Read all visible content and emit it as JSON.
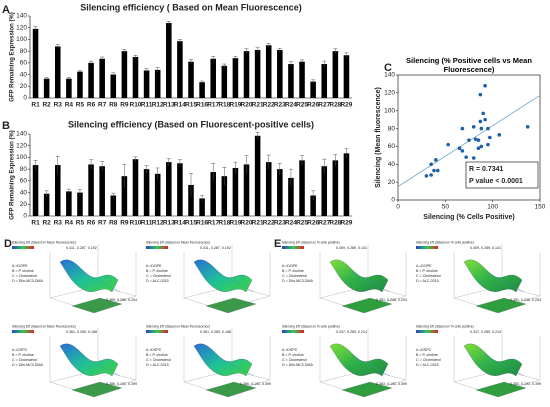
{
  "chart_data": [
    {
      "type": "bar",
      "title": "Silencing efficiency ( Based on Mean Fluorescence)",
      "y_label": "GFP Remaining Expression (%)",
      "color": "#000000",
      "categories": [
        "R1",
        "R2",
        "R3",
        "R4",
        "R5",
        "R6",
        "R7",
        "R8",
        "R9",
        "R10",
        "R11",
        "R12",
        "R13",
        "R14",
        "R15",
        "R16",
        "R17",
        "R18",
        "R19",
        "R20",
        "R21",
        "R22",
        "R23",
        "R24",
        "R25",
        "R26",
        "R27",
        "R28",
        "R29"
      ],
      "values": [
        118,
        33,
        88,
        33,
        45,
        60,
        67,
        40,
        80,
        70,
        47,
        48,
        128,
        97,
        62,
        27,
        67,
        55,
        68,
        80,
        82,
        90,
        82,
        58,
        62,
        28,
        58,
        80,
        73
      ],
      "errors": [
        4,
        2,
        3,
        2,
        2,
        3,
        3,
        3,
        3,
        3,
        3,
        4,
        3,
        3,
        4,
        2,
        4,
        3,
        3,
        4,
        4,
        3,
        3,
        4,
        3,
        3,
        5,
        4,
        4
      ],
      "ylim": [
        0,
        140
      ],
      "yticks": [
        0,
        20,
        40,
        60,
        80,
        100,
        120,
        140
      ]
    },
    {
      "type": "bar",
      "title": "Silencing efficiency (Based on Fluorescent-positive cells)",
      "y_label": "GFP Remaining Expression (%)",
      "color": "#000000",
      "categories": [
        "R1",
        "R2",
        "R3",
        "R4",
        "R5",
        "R6",
        "R7",
        "R8",
        "R9",
        "R10",
        "R11",
        "R12",
        "R13",
        "R14",
        "R15",
        "R16",
        "R17",
        "R18",
        "R19",
        "R20",
        "R21",
        "R22",
        "R23",
        "R24",
        "R25",
        "R26",
        "R27",
        "R28",
        "R29"
      ],
      "values": [
        87,
        38,
        87,
        42,
        40,
        88,
        85,
        35,
        68,
        97,
        80,
        72,
        92,
        90,
        53,
        30,
        75,
        68,
        82,
        88,
        137,
        92,
        80,
        65,
        95,
        35,
        85,
        95,
        107
      ],
      "errors": [
        8,
        5,
        15,
        4,
        5,
        8,
        8,
        4,
        20,
        4,
        6,
        10,
        6,
        6,
        20,
        5,
        15,
        15,
        10,
        15,
        6,
        12,
        10,
        15,
        8,
        8,
        12,
        10,
        8
      ],
      "ylim": [
        0,
        140
      ],
      "yticks": [
        0,
        20,
        40,
        60,
        80,
        100,
        120,
        140
      ]
    },
    {
      "type": "scatter",
      "title": "Silencing (% Positive cells vs Mean Fluorescence)",
      "x_label": "Silencing (% Cells Positive)",
      "y_label": "Silencing (Mean fluorescence)",
      "color": "#1f5fa8",
      "trend_color": "#6fa8c8",
      "x": [
        87,
        38,
        87,
        42,
        40,
        88,
        85,
        35,
        68,
        97,
        80,
        72,
        92,
        90,
        53,
        30,
        75,
        68,
        82,
        88,
        137,
        92,
        80,
        65,
        95,
        35,
        85,
        95,
        107
      ],
      "y": [
        118,
        33,
        88,
        33,
        45,
        60,
        67,
        40,
        80,
        70,
        47,
        48,
        128,
        97,
        62,
        27,
        67,
        55,
        68,
        80,
        82,
        90,
        82,
        58,
        62,
        28,
        58,
        80,
        73
      ],
      "xlim": [
        0,
        150
      ],
      "xticks": [
        0,
        50,
        100,
        150
      ],
      "ylim": [
        0,
        140
      ],
      "yticks": [
        0,
        20,
        40,
        60,
        80,
        100,
        120,
        140
      ],
      "annotations": [
        "R = 0.7341",
        "P value < 0.0001"
      ]
    }
  ],
  "figure": {
    "panel_labels": [
      "A",
      "B",
      "C",
      "D",
      "E"
    ],
    "surface_plots": [
      {
        "title": "Silencing Eff. (Based on Mean Fluorescence)",
        "legend": [
          "A =DOPE",
          "B = P. choline",
          "C = Cholesterol",
          "D = Dlin-MC3-DMA"
        ],
        "points": [
          "0.411, 0.287, 0.192",
          "0.369, 0.286, 0.204"
        ]
      },
      {
        "title": "Silencing Eff. (Based on Mean Fluorescence)",
        "legend": [
          "A =DOPE",
          "B = P. choline",
          "C = Cholesterol",
          "D = ALC-0315"
        ],
        "points": [
          "0.411, 0.287, 0.192"
        ]
      },
      {
        "title": "Silencing Eff. (Based on Mean Fluorescence)",
        "legend": [
          "A =DSPC",
          "B = P. choline",
          "C = Cholesterol",
          "D = Dlin-MC3-DMA"
        ],
        "points": [
          "0.361, 0.289, 0.188",
          "0.386, 0.192, 0.399"
        ]
      },
      {
        "title": "Silencing Eff. (Based on Mean Fluorescence)",
        "legend": [
          "A =DSPC",
          "B = P. choline",
          "C = Cholesterol",
          "D = ALC-0315"
        ],
        "points": [
          "0.361, 0.289, 0.188",
          "0.386, 0.192, 0.399"
        ]
      },
      {
        "title": "Silencing Eff. (Based on % cells positive)",
        "legend": [
          "A =DOPE",
          "B = P. choline",
          "C = Cholesterol",
          "D = Dlin-MC3-DMA"
        ],
        "points": [
          "0.409, 0.289, 0.141",
          "0.351, 0.246, 0.253"
        ]
      },
      {
        "title": "Silencing Eff. (Based on % cells positive)",
        "legend": [
          "A =DOPE",
          "B = P. choline",
          "C = Cholesterol",
          "D = ALC-0315"
        ],
        "points": [
          "0.409, 0.289, 0.141",
          "0.351, 0.246, 0.253"
        ]
      },
      {
        "title": "Silencing Eff. (Based on % cells positive)",
        "legend": [
          "A =DSPC",
          "B = P. choline",
          "C = Cholesterol",
          "D = Dlin-MC3-DMA"
        ],
        "points": [
          "0.337, 0.289, 0.214",
          "0.383, 0.192, 0.399"
        ]
      },
      {
        "title": "Silencing Eff. (Based on % cells positive)",
        "legend": [
          "A =DSPC",
          "B = P. choline",
          "C = Cholesterol",
          "D = ALC-0315"
        ],
        "points": [
          "0.337, 0.289, 0.214",
          "0.383, 0.192, 0.399"
        ]
      }
    ]
  }
}
